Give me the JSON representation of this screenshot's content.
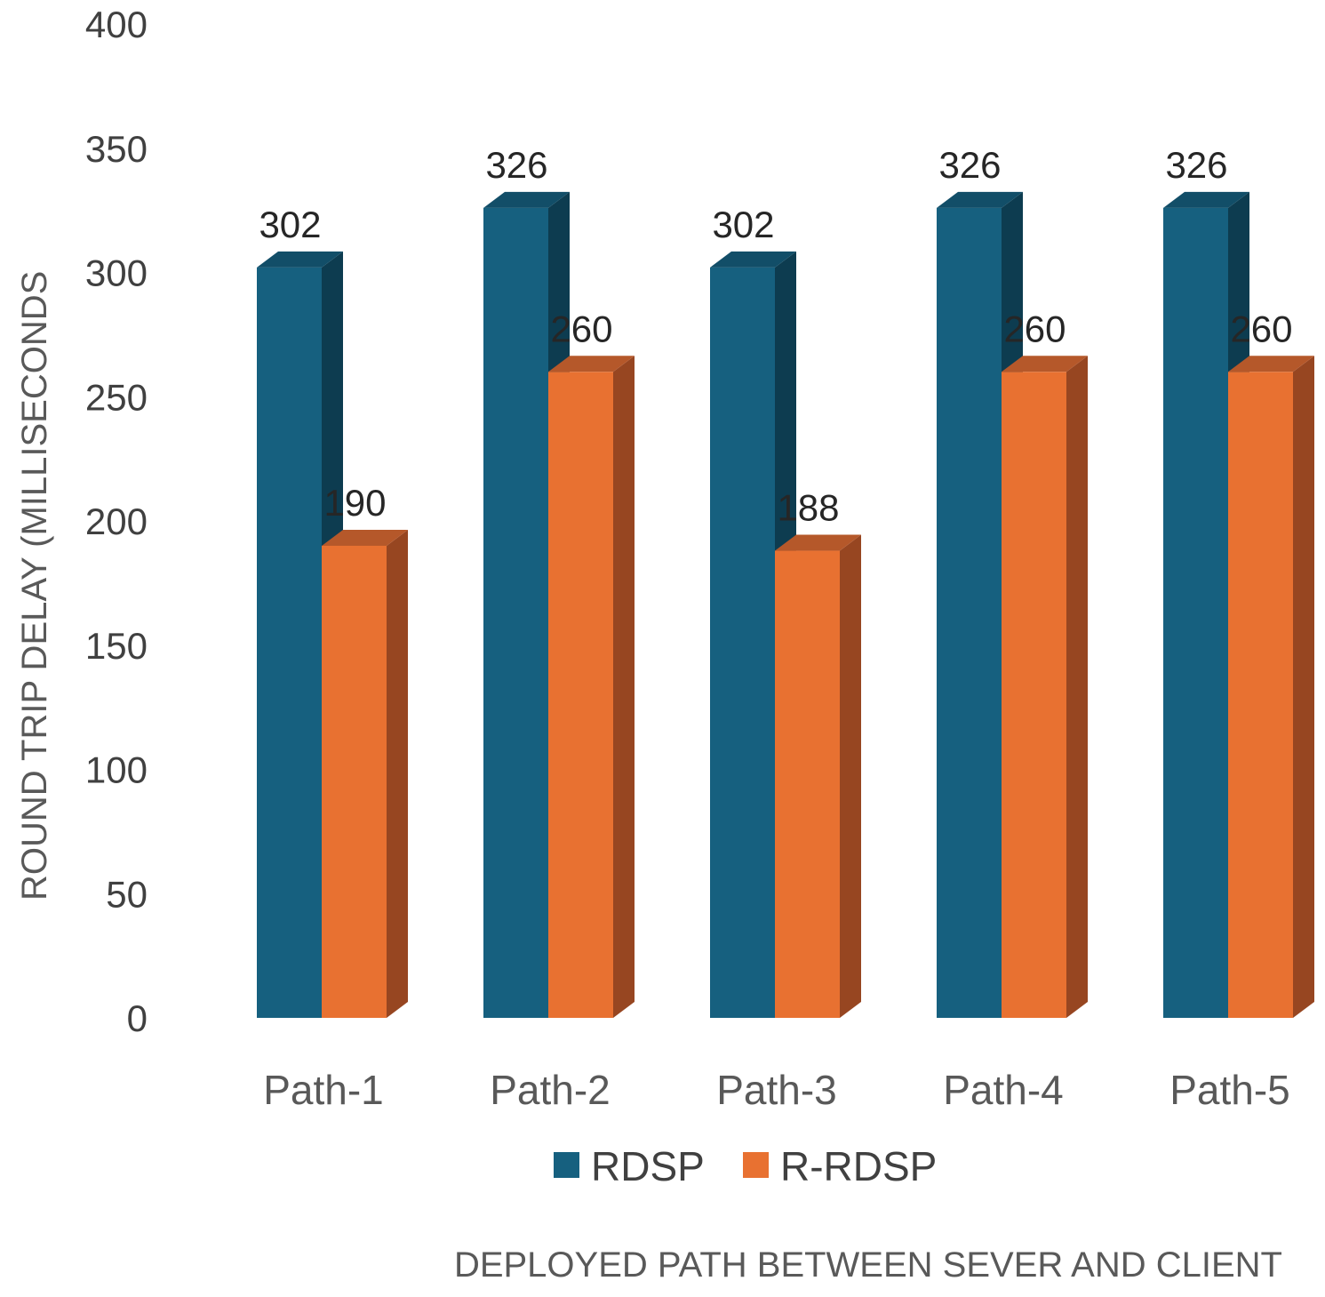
{
  "chart_data": {
    "type": "bar",
    "title": "",
    "xlabel": "DEPLOYED PATH BETWEEN SEVER AND CLIENT",
    "ylabel": "ROUND TRIP DELAY (MILLISECONDS",
    "ylim": [
      0,
      400
    ],
    "yticks": [
      0,
      50,
      100,
      150,
      200,
      250,
      300,
      350,
      400
    ],
    "categories": [
      "Path-1",
      "Path-2",
      "Path-3",
      "Path-4",
      "Path-5"
    ],
    "series": [
      {
        "name": "RDSP",
        "values": [
          302,
          326,
          302,
          326,
          326
        ]
      },
      {
        "name": "R-RDSP",
        "values": [
          190,
          260,
          188,
          260,
          260
        ]
      }
    ],
    "legend_position": "bottom",
    "grid": false,
    "colors": {
      "RDSP": {
        "front": "#16607f",
        "side": "#0d3c50",
        "top": "#124e68"
      },
      "R-RDSP": {
        "front": "#e87131",
        "side": "#974621",
        "top": "#b5582a"
      }
    }
  }
}
